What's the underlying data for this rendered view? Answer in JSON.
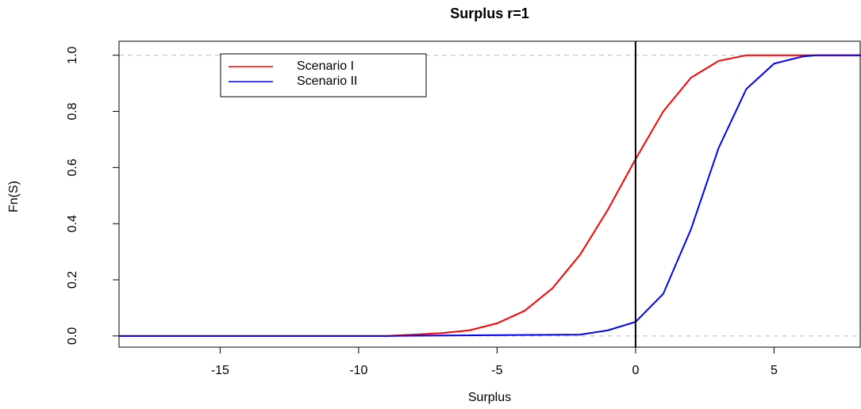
{
  "chart_data": {
    "type": "line",
    "title": "Surplus r=1",
    "x_label": "Surplus",
    "y_label": "Fn(S)",
    "xlim": [
      -18.65,
      8.14
    ],
    "ylim": [
      -0.04,
      1.05
    ],
    "xticks": [
      -15,
      -10,
      -5,
      0,
      5
    ],
    "yticks": [
      {
        "value": 0,
        "label": "0.0"
      },
      0.2,
      0.4,
      0.6,
      0.8,
      {
        "value": 1,
        "label": "1.0"
      }
    ],
    "vline": 0,
    "hlines": [
      0,
      1
    ],
    "legend": "top-left",
    "series": [
      {
        "name": "Scenario I",
        "color": "#ff0000",
        "x": [
          -18.65,
          -9,
          -8,
          -7,
          -6,
          -5,
          -4,
          -3,
          -2,
          -1,
          0,
          1,
          2,
          3,
          4,
          8.14
        ],
        "values": [
          0,
          0,
          0.005,
          0.01,
          0.02,
          0.045,
          0.09,
          0.17,
          0.29,
          0.45,
          0.63,
          0.8,
          0.92,
          0.98,
          1,
          1
        ]
      },
      {
        "name": "Scenario II",
        "color": "#0000ff",
        "x": [
          -18.65,
          -9,
          -2,
          -1,
          0,
          1,
          2,
          3,
          4,
          5,
          6,
          6.5,
          8.14
        ],
        "values": [
          0,
          0,
          0.005,
          0.02,
          0.05,
          0.15,
          0.38,
          0.67,
          0.88,
          0.97,
          0.995,
          1,
          1
        ]
      }
    ]
  }
}
